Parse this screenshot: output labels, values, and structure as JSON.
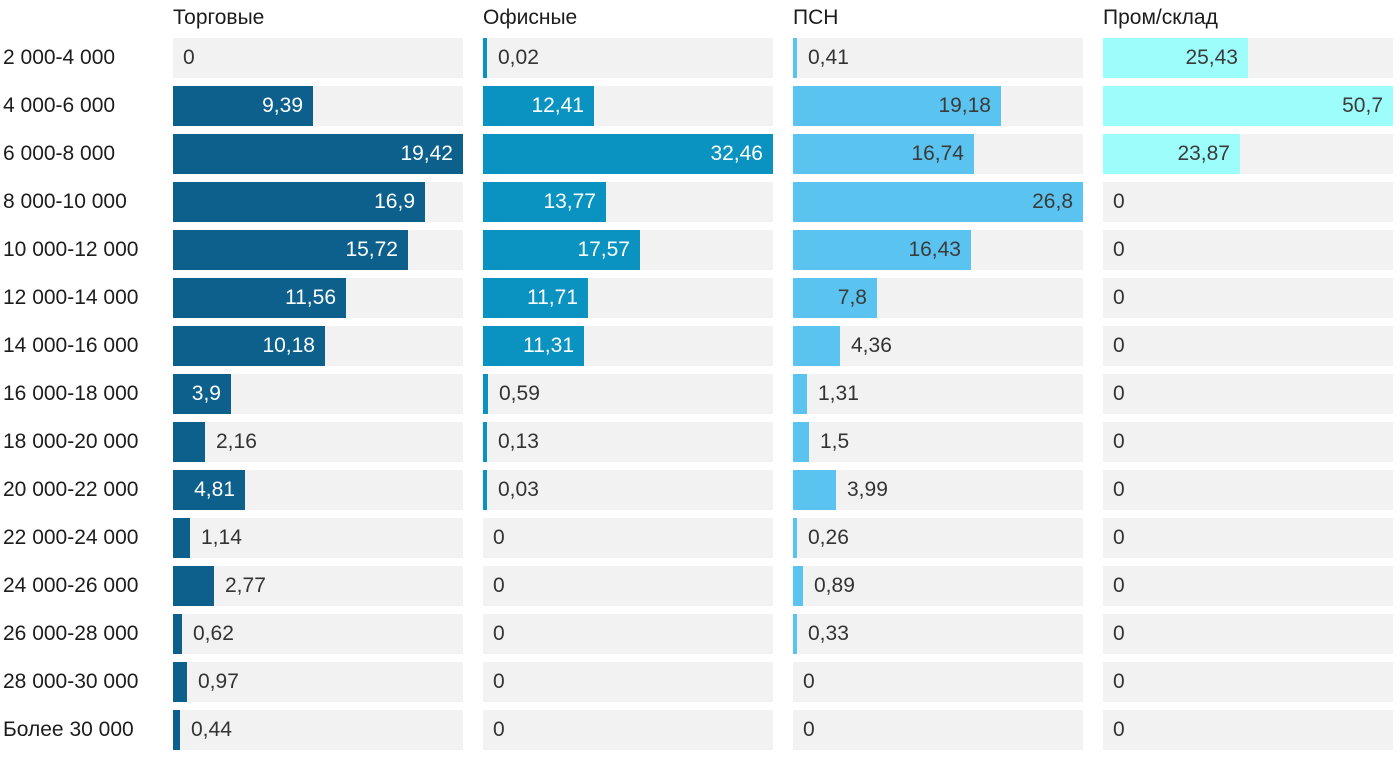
{
  "chart_data": {
    "type": "bar",
    "orientation": "horizontal",
    "title": "",
    "xlabel": "",
    "ylabel": "",
    "note": "small-multiples: four facet columns share the same category rows; each facet's bars are scaled to that facet's own maximum; values use comma decimal separator",
    "categories": [
      "2 000-4 000",
      "4 000-6 000",
      "6 000-8 000",
      "8 000-10 000",
      "10 000-12 000",
      "12 000-14 000",
      "14 000-16 000",
      "16 000-18 000",
      "18 000-20 000",
      "20 000-22 000",
      "22 000-24 000",
      "24 000-26 000",
      "26 000-28 000",
      "28 000-30 000",
      "Более 30 000"
    ],
    "series": [
      {
        "name": "Торговые",
        "color": "#0d608c",
        "label_color_inside": "#ffffff",
        "values": [
          0,
          9.39,
          19.42,
          16.9,
          15.72,
          11.56,
          10.18,
          3.9,
          2.16,
          4.81,
          1.14,
          2.77,
          0.62,
          0.97,
          0.44
        ]
      },
      {
        "name": "Офисные",
        "color": "#0a93c0",
        "label_color_inside": "#ffffff",
        "values": [
          0.02,
          12.41,
          32.46,
          13.77,
          17.57,
          11.71,
          11.31,
          0.59,
          0.13,
          0.03,
          0,
          0,
          0,
          0,
          0
        ]
      },
      {
        "name": "ПСН",
        "color": "#5ac3f0",
        "label_color_inside": "#3b3b3b",
        "values": [
          0.41,
          19.18,
          16.74,
          26.8,
          16.43,
          7.8,
          4.36,
          1.31,
          1.5,
          3.99,
          0.26,
          0.89,
          0.33,
          0,
          0
        ]
      },
      {
        "name": "Пром/склад",
        "color": "#9cfdfb",
        "label_color_inside": "#3b3b3b",
        "values": [
          25.43,
          50.7,
          23.87,
          0,
          0,
          0,
          0,
          0,
          0,
          0,
          0,
          0,
          0,
          0,
          0
        ]
      }
    ],
    "track_color": "#f2f2f2",
    "value_label_color_outside": "#333333",
    "category_label_color": "#1c1c1c",
    "decimal_separator": ","
  }
}
